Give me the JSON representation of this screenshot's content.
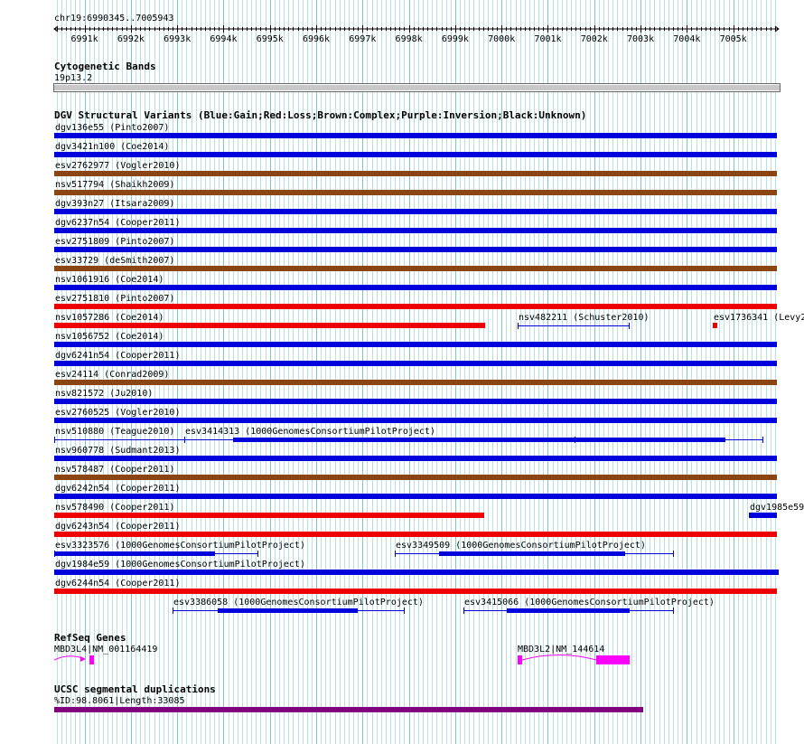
{
  "colors": {
    "grid_minor": "#b9e0e8",
    "grid_major": "#7fc6d3",
    "gain": "#0000dd",
    "loss": "#ee0000",
    "complex": "#8b4513",
    "segdup": "#800080",
    "refseq": "#ff00ff",
    "cyto": "#c8c8c8"
  },
  "ruler": {
    "region": "chr19:6990345..7005943",
    "start": 6990345,
    "end": 7005943,
    "ticks": [
      "6991k",
      "6992k",
      "6993k",
      "6994k",
      "6995k",
      "6996k",
      "6997k",
      "6998k",
      "6999k",
      "7000k",
      "7001k",
      "7002k",
      "7003k",
      "7004k",
      "7005k"
    ]
  },
  "cytoband": {
    "title": "Cytogenetic Bands",
    "label": "19p13.2"
  },
  "dgv": {
    "title": "DGV Structural Variants (Blue:Gain;Red:Loss;Brown:Complex;Purple:Inversion;Black:Unknown)",
    "features": [
      {
        "label": "dgv136e55 (Pinto2007)",
        "type": "gain",
        "start": 6990345,
        "end": 7005943
      },
      {
        "label": "dgv3421n100 (Coe2014)",
        "type": "gain",
        "start": 6990345,
        "end": 7005943
      },
      {
        "label": "esv2762977 (Vogler2010)",
        "type": "complex",
        "start": 6990345,
        "end": 7005943
      },
      {
        "label": "nsv517794 (Shaikh2009)",
        "type": "complex",
        "start": 6990345,
        "end": 7005943
      },
      {
        "label": "dgv393n27 (Itsara2009)",
        "type": "gain",
        "start": 6990345,
        "end": 7005943
      },
      {
        "label": "dgv6237n54 (Cooper2011)",
        "type": "gain",
        "start": 6990345,
        "end": 7005943
      },
      {
        "label": "esv2751809 (Pinto2007)",
        "type": "gain",
        "start": 6990345,
        "end": 7005943
      },
      {
        "label": "esv33729 (deSmith2007)",
        "type": "complex",
        "start": 6990345,
        "end": 7005943
      },
      {
        "label": "nsv1061916 (Coe2014)",
        "type": "gain",
        "start": 6990345,
        "end": 7005943
      },
      {
        "label": "esv2751810 (Pinto2007)",
        "type": "loss",
        "start": 6990345,
        "end": 7005943
      },
      {
        "label": "nsv1057286 (Coe2014)",
        "type": "loss",
        "start": 6990345,
        "end": 6999650
      },
      {
        "label": "nsv482211 (Schuster2010)",
        "type": "gain-thin",
        "start": 7000340,
        "end": 7002740
      },
      {
        "label": "esv1736341 (Levy2",
        "type": "loss",
        "start": 7004560,
        "end": 7004660
      },
      {
        "label": "nsv1056752 (Coe2014)",
        "type": "gain",
        "start": 6990345,
        "end": 7005943
      },
      {
        "label": "dgv6241n54 (Cooper2011)",
        "type": "gain",
        "start": 6990345,
        "end": 7005943
      },
      {
        "label": "esv24114 (Conrad2009)",
        "type": "complex",
        "start": 6990345,
        "end": 7005943
      },
      {
        "label": "nsv821572 (Ju2010)",
        "type": "gain",
        "start": 6990345,
        "end": 7005943
      },
      {
        "label": "esv2760525 (Vogler2010)",
        "type": "gain",
        "start": 6990345,
        "end": 7005943
      },
      {
        "label": "nsv510880 (Teague2010)",
        "type": "gain-thin",
        "start": 6990345,
        "end": 7001585
      },
      {
        "label": "esv3414313 (1000GenomesConsortiumPilotProject)",
        "type": "gain-multi",
        "start": 6993160,
        "end": 7005640
      },
      {
        "label": "nsv960778 (Sudmant2013)",
        "type": "gain",
        "start": 6990345,
        "end": 7005943
      },
      {
        "label": "nsv578487 (Cooper2011)",
        "type": "complex",
        "start": 6990345,
        "end": 7005943
      },
      {
        "label": "dgv6242n54 (Cooper2011)",
        "type": "gain",
        "start": 6990345,
        "end": 7005943
      },
      {
        "label": "nsv578490 (Cooper2011)",
        "type": "loss",
        "start": 6990345,
        "end": 6999620
      },
      {
        "label": "dgv1985e59",
        "type": "gain",
        "start": 7005330,
        "end": 7005943
      },
      {
        "label": "dgv6243n54 (Cooper2011)",
        "type": "loss",
        "start": 6990345,
        "end": 7005943
      },
      {
        "label": "esv3323576 (1000GenomesConsortiumPilotProject)",
        "type": "gain-multi",
        "start": 6990345,
        "end": 6994730
      },
      {
        "label": "esv3349509 (1000GenomesConsortiumPilotProject)",
        "type": "gain-multi",
        "start": 6997700,
        "end": 7003700
      },
      {
        "label": "dgv1984e59 (1000GenomesConsortiumPilotProject)",
        "type": "gain",
        "start": 6990345,
        "end": 7006450
      },
      {
        "label": "dgv6244n54 (Cooper2011)",
        "type": "loss",
        "start": 6990345,
        "end": 7005943
      },
      {
        "label": "esv3386058 (1000GenomesConsortiumPilotProject)",
        "type": "gain-multi",
        "start": 6992890,
        "end": 6997900
      },
      {
        "label": "esv3415066 (1000GenomesConsortiumPilotProject)",
        "type": "gain-multi",
        "start": 6999180,
        "end": 7003700
      }
    ]
  },
  "refseq": {
    "title": "RefSeq Genes",
    "genes": [
      {
        "label": "MBD3L4|NM_001164419",
        "start": 6990345,
        "end": 6991200
      },
      {
        "label": "MBD3L2|NM_144614",
        "start": 7000340,
        "end": 7002750
      }
    ]
  },
  "segdup": {
    "title": "UCSC segmental duplications",
    "label": "%ID:98.8061|Length:33085",
    "start": 6990345,
    "end": 7003060
  }
}
